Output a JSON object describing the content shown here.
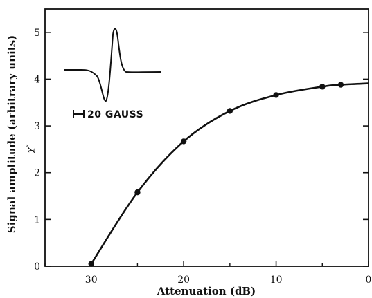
{
  "chart_data": {
    "type": "line",
    "xlabel": "Attenuation (dB)",
    "ylabel": "Signal amplitude (arbitrary units)",
    "ylabel_symbol": "χ″",
    "xlim": [
      35,
      0
    ],
    "ylim": [
      0,
      5.5
    ],
    "x_ticks": [
      30,
      20,
      10,
      0
    ],
    "y_ticks": [
      0,
      1,
      2,
      3,
      4,
      5
    ],
    "grid": false,
    "series": [
      {
        "points": [
          {
            "x": 30,
            "y": 0.05
          },
          {
            "x": 25,
            "y": 1.58
          },
          {
            "x": 20,
            "y": 2.67
          },
          {
            "x": 15,
            "y": 3.32
          },
          {
            "x": 10,
            "y": 3.66
          },
          {
            "x": 5,
            "y": 3.84
          },
          {
            "x": 3,
            "y": 3.88
          }
        ],
        "curve_end": {
          "x": 0,
          "y": 3.91
        },
        "color": "#111111"
      }
    ],
    "inset": {
      "description_label": "20 GAUSS",
      "signal": "derivative absorption line"
    }
  }
}
